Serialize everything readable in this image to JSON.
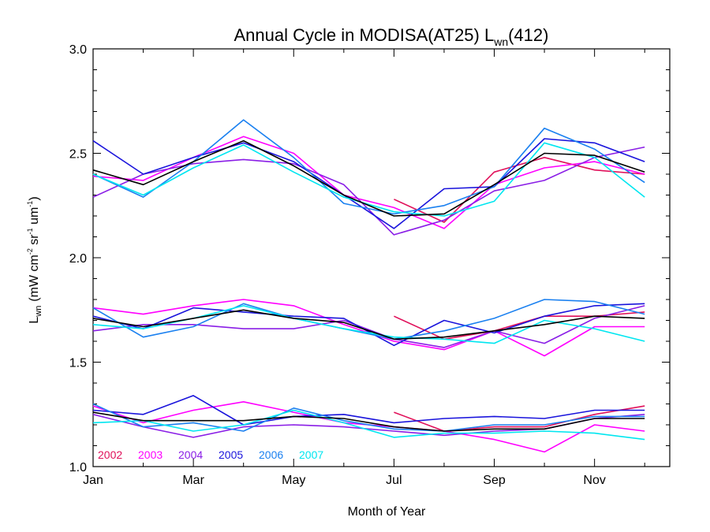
{
  "chart_data": {
    "type": "line",
    "title_main": "Annual Cycle in MODISA(AT25) L",
    "title_sub": "wn",
    "title_tail": "(412)",
    "xlabel": "Month of Year",
    "ylabel_main": "L",
    "ylabel_sub": "wn",
    "ylabel_units": "(mW cm",
    "ylabel_exp1": "-2",
    "ylabel_mid1": " sr",
    "ylabel_exp2": "-1",
    "ylabel_mid2": " um",
    "ylabel_exp3": "-1",
    "ylabel_close": ")",
    "xlim": [
      1,
      12.5
    ],
    "ylim": [
      1.0,
      3.0
    ],
    "x_ticks": [
      {
        "value": 1,
        "label": "Jan"
      },
      {
        "value": 3,
        "label": "Mar"
      },
      {
        "value": 5,
        "label": "May"
      },
      {
        "value": 7,
        "label": "Jul"
      },
      {
        "value": 9,
        "label": "Sep"
      },
      {
        "value": 11,
        "label": "Nov"
      }
    ],
    "y_ticks": [
      {
        "value": 1.0,
        "label": "1.0"
      },
      {
        "value": 1.5,
        "label": "1.5"
      },
      {
        "value": 2.0,
        "label": "2.0"
      },
      {
        "value": 2.5,
        "label": "2.5"
      },
      {
        "value": 3.0,
        "label": "3.0"
      }
    ],
    "x": [
      1,
      2,
      3,
      4,
      5,
      6,
      7,
      8,
      9,
      10,
      11,
      12
    ],
    "legend": [
      {
        "name": "2002",
        "color": "#e0105a"
      },
      {
        "name": "2003",
        "color": "#ff00ff"
      },
      {
        "name": "2004",
        "color": "#8a1ee6"
      },
      {
        "name": "2005",
        "color": "#1a14dc"
      },
      {
        "name": "2006",
        "color": "#1a80f0"
      },
      {
        "name": "2007",
        "color": "#00e6f0"
      }
    ],
    "series": [
      {
        "color": "#e0105a",
        "values": [
          null,
          null,
          null,
          null,
          null,
          null,
          2.28,
          2.17,
          2.41,
          2.48,
          2.42,
          2.4
        ]
      },
      {
        "color": "#ff00ff",
        "values": [
          2.39,
          2.37,
          2.48,
          2.58,
          2.5,
          2.3,
          2.24,
          2.14,
          2.35,
          2.43,
          2.46,
          2.4
        ]
      },
      {
        "color": "#8a1ee6",
        "values": [
          2.29,
          2.4,
          2.45,
          2.47,
          2.45,
          2.35,
          2.11,
          2.18,
          2.32,
          2.37,
          2.48,
          2.53
        ]
      },
      {
        "color": "#1a14dc",
        "values": [
          2.56,
          2.4,
          2.48,
          2.55,
          2.46,
          2.3,
          2.14,
          2.33,
          2.34,
          2.57,
          2.55,
          2.46
        ]
      },
      {
        "color": "#1a80f0",
        "values": [
          2.4,
          2.29,
          2.46,
          2.66,
          2.48,
          2.26,
          2.21,
          2.25,
          2.34,
          2.62,
          2.52,
          2.36
        ]
      },
      {
        "color": "#00e6f0",
        "values": [
          2.4,
          2.3,
          2.43,
          2.54,
          2.41,
          2.29,
          2.22,
          2.2,
          2.27,
          2.55,
          2.48,
          2.29
        ]
      },
      {
        "color": "#000000",
        "values": [
          2.42,
          2.35,
          2.46,
          2.56,
          2.44,
          2.3,
          2.2,
          2.21,
          2.35,
          2.5,
          2.49,
          2.41
        ]
      },
      {
        "color": "#e0105a",
        "values": [
          null,
          null,
          null,
          null,
          null,
          null,
          1.72,
          1.61,
          1.65,
          1.72,
          1.72,
          1.74
        ]
      },
      {
        "color": "#ff00ff",
        "values": [
          1.76,
          1.73,
          1.77,
          1.8,
          1.77,
          1.68,
          1.6,
          1.56,
          1.65,
          1.53,
          1.67,
          1.67
        ]
      },
      {
        "color": "#8a1ee6",
        "values": [
          1.65,
          1.68,
          1.68,
          1.66,
          1.66,
          1.7,
          1.61,
          1.57,
          1.65,
          1.59,
          1.71,
          1.77
        ]
      },
      {
        "color": "#1a14dc",
        "values": [
          1.72,
          1.66,
          1.76,
          1.74,
          1.72,
          1.71,
          1.58,
          1.7,
          1.64,
          1.72,
          1.77,
          1.78
        ]
      },
      {
        "color": "#1a80f0",
        "values": [
          1.76,
          1.62,
          1.67,
          1.78,
          1.71,
          1.66,
          1.61,
          1.65,
          1.71,
          1.8,
          1.79,
          1.73
        ]
      },
      {
        "color": "#00e6f0",
        "values": [
          1.68,
          1.66,
          1.71,
          1.77,
          1.71,
          1.66,
          1.62,
          1.61,
          1.59,
          1.7,
          1.66,
          1.6
        ]
      },
      {
        "color": "#000000",
        "values": [
          1.71,
          1.67,
          1.71,
          1.75,
          1.71,
          1.69,
          1.61,
          1.62,
          1.65,
          1.68,
          1.72,
          1.71
        ]
      },
      {
        "color": "#e0105a",
        "values": [
          null,
          null,
          null,
          null,
          null,
          null,
          1.26,
          1.17,
          1.19,
          1.19,
          1.25,
          1.29
        ]
      },
      {
        "color": "#ff00ff",
        "values": [
          1.29,
          1.21,
          1.27,
          1.31,
          1.26,
          1.21,
          1.19,
          1.17,
          1.13,
          1.07,
          1.2,
          1.17
        ]
      },
      {
        "color": "#8a1ee6",
        "values": [
          1.25,
          1.19,
          1.14,
          1.19,
          1.2,
          1.19,
          1.17,
          1.15,
          1.17,
          1.18,
          1.23,
          1.25
        ]
      },
      {
        "color": "#1a14dc",
        "values": [
          1.27,
          1.25,
          1.34,
          1.2,
          1.24,
          1.25,
          1.21,
          1.23,
          1.24,
          1.23,
          1.27,
          1.27
        ]
      },
      {
        "color": "#1a80f0",
        "values": [
          1.3,
          1.19,
          1.21,
          1.17,
          1.28,
          1.22,
          1.18,
          1.17,
          1.2,
          1.2,
          1.24,
          1.24
        ]
      },
      {
        "color": "#00e6f0",
        "values": [
          1.21,
          1.22,
          1.17,
          1.2,
          1.27,
          1.21,
          1.14,
          1.16,
          1.16,
          1.17,
          1.16,
          1.13
        ]
      },
      {
        "color": "#000000",
        "values": [
          1.26,
          1.22,
          1.22,
          1.22,
          1.24,
          1.23,
          1.19,
          1.17,
          1.18,
          1.18,
          1.23,
          1.23
        ]
      }
    ]
  }
}
